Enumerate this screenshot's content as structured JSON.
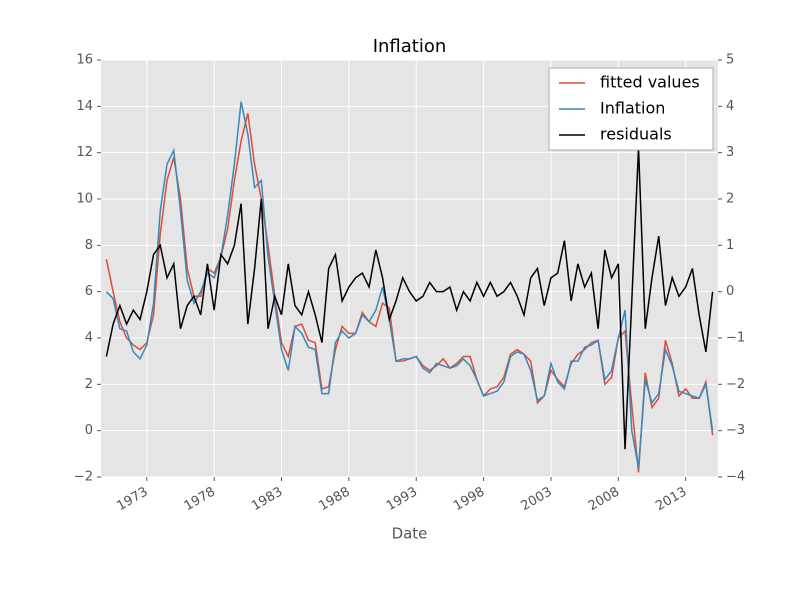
{
  "chart_data": {
    "type": "line",
    "title": "Inflation",
    "x_label": "Date",
    "x": [
      1970,
      1970.5,
      1971,
      1971.5,
      1972,
      1972.5,
      1973,
      1973.5,
      1974,
      1974.5,
      1975,
      1975.5,
      1976,
      1976.5,
      1977,
      1977.5,
      1978,
      1978.5,
      1979,
      1979.5,
      1980,
      1980.5,
      1981,
      1981.5,
      1982,
      1982.5,
      1983,
      1983.5,
      1984,
      1984.5,
      1985,
      1985.5,
      1986,
      1986.5,
      1987,
      1987.5,
      1988,
      1988.5,
      1989,
      1989.5,
      1990,
      1990.5,
      1991,
      1991.5,
      1992,
      1992.5,
      1993,
      1993.5,
      1994,
      1994.5,
      1995,
      1995.5,
      1996,
      1996.5,
      1997,
      1997.5,
      1998,
      1998.5,
      1999,
      1999.5,
      2000,
      2000.5,
      2001,
      2001.5,
      2002,
      2002.5,
      2003,
      2003.5,
      2004,
      2004.5,
      2005,
      2005.5,
      2006,
      2006.5,
      2007,
      2007.5,
      2008,
      2008.5,
      2009,
      2009.5,
      2010,
      2010.5,
      2011,
      2011.5,
      2012,
      2012.5,
      2013,
      2013.5,
      2014,
      2014.5,
      2015
    ],
    "series": [
      {
        "name": "fitted values",
        "color": "#e24a33",
        "values": [
          7.4,
          6.0,
          4.7,
          4.0,
          3.7,
          3.5,
          3.8,
          5.0,
          8.5,
          10.8,
          11.8,
          10.0,
          7.0,
          5.8,
          5.8,
          7.0,
          6.8,
          7.5,
          8.7,
          10.8,
          12.5,
          13.7,
          11.5,
          10.0,
          8.0,
          5.8,
          3.8,
          3.2,
          4.5,
          4.6,
          3.9,
          3.8,
          1.8,
          1.9,
          3.5,
          4.5,
          4.2,
          4.2,
          5.1,
          4.7,
          4.5,
          5.5,
          5.3,
          3.0,
          3.0,
          3.1,
          3.2,
          2.8,
          2.6,
          2.8,
          3.1,
          2.7,
          2.9,
          3.2,
          3.2,
          2.2,
          1.5,
          1.8,
          1.9,
          2.3,
          3.3,
          3.5,
          3.3,
          3.0,
          1.2,
          1.5,
          2.6,
          2.2,
          1.9,
          2.9,
          3.3,
          3.5,
          3.8,
          3.9,
          2.0,
          2.3,
          4.0,
          4.3,
          1.1,
          -1.8,
          2.5,
          1.0,
          1.4,
          3.9,
          2.9,
          1.5,
          1.8,
          1.4,
          1.4,
          2.1,
          -0.2
        ]
      },
      {
        "name": "Inflation",
        "color": "#348abd",
        "values": [
          6.0,
          5.7,
          4.4,
          4.3,
          3.4,
          3.1,
          3.7,
          5.5,
          9.5,
          11.5,
          12.1,
          9.5,
          6.5,
          5.5,
          6.0,
          6.8,
          6.6,
          7.5,
          9.3,
          11.5,
          14.2,
          12.8,
          10.5,
          10.8,
          7.5,
          5.5,
          3.5,
          2.6,
          4.5,
          4.2,
          3.6,
          3.5,
          1.6,
          1.6,
          3.8,
          4.3,
          4.0,
          4.2,
          5.0,
          4.7,
          5.2,
          6.2,
          4.8,
          3.0,
          3.1,
          3.1,
          3.2,
          2.7,
          2.5,
          2.9,
          2.8,
          2.7,
          2.8,
          3.1,
          2.8,
          2.2,
          1.5,
          1.6,
          1.7,
          2.1,
          3.2,
          3.4,
          3.3,
          2.6,
          1.3,
          1.5,
          2.9,
          2.1,
          1.8,
          3.0,
          3.0,
          3.6,
          3.7,
          3.9,
          2.2,
          2.6,
          4.0,
          5.2,
          0.0,
          -1.6,
          2.2,
          1.2,
          1.6,
          3.5,
          2.8,
          1.7,
          1.6,
          1.5,
          1.4,
          2.0,
          0.0
        ]
      },
      {
        "name": "residuals",
        "color": "#000000",
        "axis": "y2",
        "values": [
          -1.4,
          -0.7,
          -0.3,
          -0.7,
          -0.4,
          -0.6,
          0.0,
          0.8,
          1.0,
          0.3,
          0.6,
          -0.8,
          -0.3,
          -0.1,
          -0.5,
          0.6,
          -0.4,
          0.8,
          0.6,
          1.0,
          1.9,
          -0.7,
          0.5,
          2.0,
          -0.8,
          -0.1,
          -0.5,
          0.6,
          -0.3,
          -0.5,
          0.0,
          -0.5,
          -1.1,
          0.5,
          0.8,
          -0.2,
          0.1,
          0.3,
          0.4,
          0.1,
          0.9,
          0.3,
          -0.6,
          -0.2,
          0.3,
          0.0,
          -0.2,
          -0.1,
          0.2,
          0.0,
          0.0,
          0.1,
          -0.4,
          0.0,
          -0.2,
          0.2,
          -0.1,
          0.2,
          -0.1,
          0.0,
          0.2,
          -0.1,
          -0.5,
          0.3,
          0.5,
          -0.3,
          0.3,
          0.4,
          1.1,
          -0.2,
          0.6,
          0.1,
          0.4,
          -0.8,
          0.9,
          0.3,
          0.6,
          -3.4,
          -0.2,
          3.1,
          -0.8,
          0.3,
          1.2,
          -0.3,
          0.3,
          -0.1,
          0.1,
          0.5,
          -0.5,
          -1.3,
          0.0
        ]
      }
    ],
    "xlim": [
      1969.6,
      2015.4
    ],
    "xticks": [
      1973,
      1978,
      1983,
      1988,
      1993,
      1998,
      2003,
      2008,
      2013
    ],
    "ylim": [
      -2,
      16
    ],
    "yticks": [
      {
        "value": -2,
        "label": "−2"
      },
      0,
      2,
      4,
      6,
      8,
      10,
      12,
      14,
      16
    ],
    "y2lim": [
      -4,
      5
    ],
    "y2ticks": [
      {
        "value": -4,
        "label": "−4"
      },
      {
        "value": -3,
        "label": "−3"
      },
      {
        "value": -2,
        "label": "−2"
      },
      {
        "value": -1,
        "label": "−1"
      },
      0,
      1,
      2,
      3,
      4,
      5
    ],
    "grid": true,
    "legend": "upper right"
  }
}
